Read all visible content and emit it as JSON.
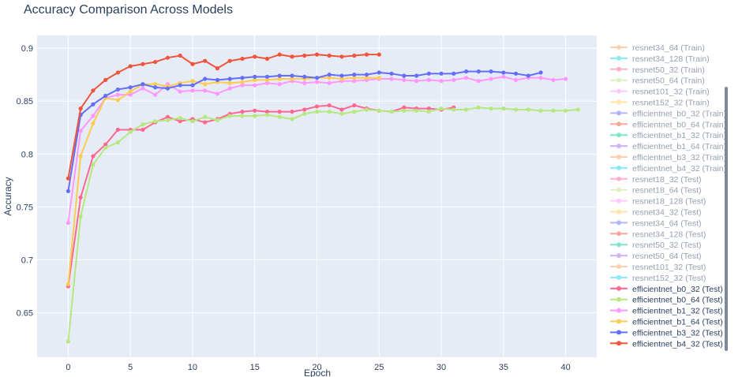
{
  "chart_data": {
    "type": "line",
    "title": "Accuracy Comparison Across Models",
    "xlabel": "Epoch",
    "ylabel": "Accuracy",
    "xlim": [
      -2.5,
      42.5
    ],
    "ylim": [
      0.608,
      0.912
    ],
    "xticks": [
      0,
      5,
      10,
      15,
      20,
      25,
      30,
      35,
      40
    ],
    "yticks": [
      0.65,
      0.7,
      0.75,
      0.8,
      0.85,
      0.9
    ],
    "ytick_labels": [
      "0.65",
      "0.7",
      "0.75",
      "0.8",
      "0.85",
      "0.9"
    ],
    "grid": true,
    "legend_position": "right",
    "series": [
      {
        "name": "resnet34_64 (Train)",
        "color": "#FFA15A",
        "hidden": true,
        "values": []
      },
      {
        "name": "resnet34_128 (Train)",
        "color": "#19D3F3",
        "hidden": true,
        "values": []
      },
      {
        "name": "resnet50_32 (Train)",
        "color": "#FF6692",
        "hidden": true,
        "values": []
      },
      {
        "name": "resnet50_64 (Train)",
        "color": "#B6E880",
        "hidden": true,
        "values": []
      },
      {
        "name": "resnet101_32 (Train)",
        "color": "#FF97FF",
        "hidden": true,
        "values": []
      },
      {
        "name": "resnet152_32 (Train)",
        "color": "#FECB52",
        "hidden": true,
        "values": []
      },
      {
        "name": "efficientnet_b0_32 (Train)",
        "color": "#636EFA",
        "hidden": true,
        "values": []
      },
      {
        "name": "efficientnet_b0_64 (Train)",
        "color": "#EF553B",
        "hidden": true,
        "values": []
      },
      {
        "name": "efficientnet_b1_32 (Train)",
        "color": "#00CC96",
        "hidden": true,
        "values": []
      },
      {
        "name": "efficientnet_b1_64 (Train)",
        "color": "#AB63FA",
        "hidden": true,
        "values": []
      },
      {
        "name": "efficientnet_b3_32 (Train)",
        "color": "#FFA15A",
        "hidden": true,
        "values": []
      },
      {
        "name": "efficientnet_b4_32 (Train)",
        "color": "#19D3F3",
        "hidden": true,
        "values": []
      },
      {
        "name": "resnet18_32 (Test)",
        "color": "#FF6692",
        "hidden": true,
        "values": []
      },
      {
        "name": "resnet18_64 (Test)",
        "color": "#B6E880",
        "hidden": true,
        "values": []
      },
      {
        "name": "resnet18_128 (Test)",
        "color": "#FF97FF",
        "hidden": true,
        "values": []
      },
      {
        "name": "resnet34_32 (Test)",
        "color": "#FECB52",
        "hidden": true,
        "values": []
      },
      {
        "name": "resnet34_64 (Test)",
        "color": "#636EFA",
        "hidden": true,
        "values": []
      },
      {
        "name": "resnet34_128 (Test)",
        "color": "#EF553B",
        "hidden": true,
        "values": []
      },
      {
        "name": "resnet50_32 (Test)",
        "color": "#00CC96",
        "hidden": true,
        "values": []
      },
      {
        "name": "resnet50_64 (Test)",
        "color": "#AB63FA",
        "hidden": true,
        "values": []
      },
      {
        "name": "resnet101_32 (Test)",
        "color": "#FFA15A",
        "hidden": true,
        "values": []
      },
      {
        "name": "resnet152_32 (Test)",
        "color": "#19D3F3",
        "hidden": true,
        "values": []
      },
      {
        "name": "efficientnet_b0_32 (Test)",
        "color": "#FF6692",
        "hidden": false,
        "values": [
          0.675,
          0.759,
          0.798,
          0.809,
          0.823,
          0.823,
          0.823,
          0.83,
          0.835,
          0.831,
          0.833,
          0.83,
          0.833,
          0.838,
          0.84,
          0.841,
          0.84,
          0.84,
          0.84,
          0.842,
          0.845,
          0.846,
          0.842,
          0.846,
          0.843,
          0.841,
          0.84,
          0.844,
          0.843,
          0.843,
          0.842,
          0.844
        ]
      },
      {
        "name": "efficientnet_b0_64 (Test)",
        "color": "#B6E880",
        "hidden": false,
        "values": [
          0.623,
          0.741,
          0.79,
          0.806,
          0.811,
          0.821,
          0.828,
          0.831,
          0.832,
          0.834,
          0.831,
          0.835,
          0.832,
          0.836,
          0.836,
          0.836,
          0.837,
          0.835,
          0.833,
          0.838,
          0.84,
          0.84,
          0.838,
          0.84,
          0.842,
          0.841,
          0.84,
          0.841,
          0.841,
          0.84,
          0.843,
          0.842,
          0.842,
          0.844,
          0.843,
          0.843,
          0.842,
          0.842,
          0.841,
          0.841,
          0.841,
          0.842
        ]
      },
      {
        "name": "efficientnet_b1_32 (Test)",
        "color": "#FF97FF",
        "hidden": false,
        "values": [
          0.735,
          0.822,
          0.836,
          0.853,
          0.856,
          0.856,
          0.862,
          0.856,
          0.866,
          0.859,
          0.86,
          0.86,
          0.857,
          0.862,
          0.865,
          0.865,
          0.867,
          0.866,
          0.869,
          0.867,
          0.868,
          0.867,
          0.869,
          0.869,
          0.87,
          0.871,
          0.871,
          0.87,
          0.869,
          0.87,
          0.869,
          0.87,
          0.872,
          0.869,
          0.871,
          0.873,
          0.87,
          0.872,
          0.872,
          0.87,
          0.871
        ]
      },
      {
        "name": "efficientnet_b1_64 (Test)",
        "color": "#FECB52",
        "hidden": false,
        "values": [
          0.677,
          0.798,
          0.829,
          0.853,
          0.851,
          0.859,
          0.866,
          0.866,
          0.864,
          0.867,
          0.869,
          0.866,
          0.868,
          0.867,
          0.868,
          0.87,
          0.87,
          0.871,
          0.871,
          0.871,
          0.872,
          0.872,
          0.871,
          0.872,
          0.872,
          0.872
        ]
      },
      {
        "name": "efficientnet_b3_32 (Test)",
        "color": "#636EFA",
        "hidden": false,
        "values": [
          0.765,
          0.837,
          0.847,
          0.855,
          0.861,
          0.863,
          0.866,
          0.863,
          0.862,
          0.865,
          0.865,
          0.871,
          0.87,
          0.871,
          0.872,
          0.873,
          0.873,
          0.874,
          0.874,
          0.873,
          0.872,
          0.875,
          0.874,
          0.875,
          0.875,
          0.877,
          0.876,
          0.874,
          0.874,
          0.876,
          0.876,
          0.876,
          0.878,
          0.878,
          0.878,
          0.877,
          0.876,
          0.874,
          0.877
        ]
      },
      {
        "name": "efficientnet_b4_32 (Test)",
        "color": "#EF553B",
        "hidden": false,
        "values": [
          0.777,
          0.843,
          0.86,
          0.87,
          0.877,
          0.883,
          0.885,
          0.887,
          0.891,
          0.893,
          0.885,
          0.888,
          0.881,
          0.888,
          0.89,
          0.892,
          0.89,
          0.894,
          0.892,
          0.893,
          0.894,
          0.893,
          0.892,
          0.893,
          0.894,
          0.894
        ]
      }
    ]
  }
}
